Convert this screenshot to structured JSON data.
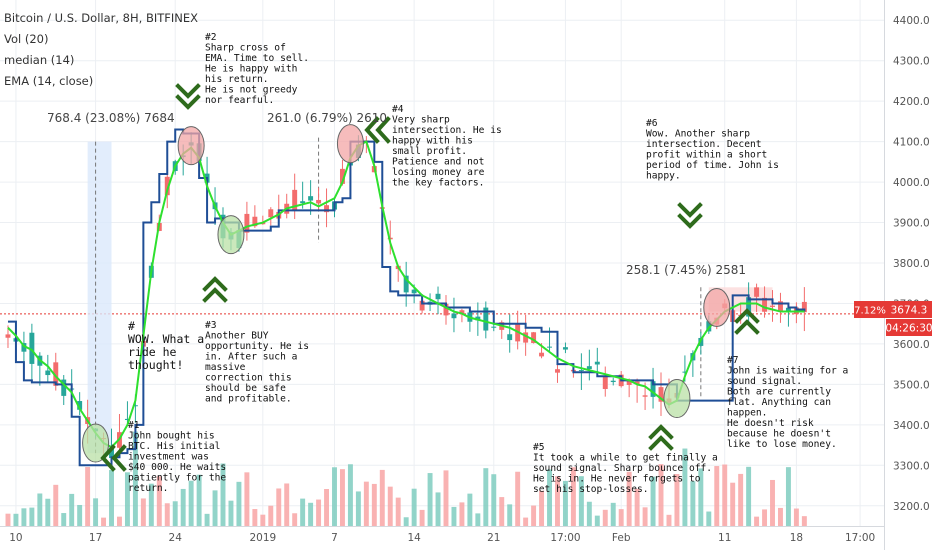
{
  "header": {
    "symbol_line": "Bitcoin / U.S. Dollar, 8H, BITFINEX",
    "indicators": [
      "Vol (20)",
      "median (14)",
      "EMA (14, close)"
    ]
  },
  "colors": {
    "up_candle": "#f36c6c",
    "down_candle": "#26a69a",
    "up_volume": "#f8a5a5",
    "down_volume": "#7fcdbf",
    "median_line": "#1f4e96",
    "ema_line": "#2ee02e",
    "arrow": "#2e6b1c",
    "price_line": "#e53935",
    "grid": "#eceff3",
    "axis_text": "#555555"
  },
  "price_badges": {
    "percent": "7.12%",
    "price": "3674.3",
    "timer": "04:26:30"
  },
  "measurements": [
    {
      "label": "768.4 (23.08%) 7684"
    },
    {
      "label": "261.0 (6.79%) 2610"
    },
    {
      "label": "258.1 (7.45%) 2581"
    }
  ],
  "notes": [
    {
      "id": "n1",
      "lines": [
        "#1",
        "John bought his",
        "BTC. His initial",
        "investment was",
        "$40 000. He waits",
        "patiently for the",
        "return."
      ]
    },
    {
      "id": "n2",
      "lines": [
        "#2",
        "Sharp cross of",
        "EMA. Time to sell.",
        "He is happy with",
        "his return.",
        "He is not greedy",
        "nor fearful."
      ]
    },
    {
      "id": "n3",
      "lines": [
        "#3",
        "Another BUY",
        "opportunity. He is",
        "in. After such a",
        "massive",
        "correction this",
        "should be safe",
        "and profitable."
      ]
    },
    {
      "id": "n4",
      "lines": [
        "#4",
        "Very sharp",
        "intersection. He is",
        "happy with his",
        "small profit.",
        "Patience and not",
        "losing money are",
        "the key factors."
      ]
    },
    {
      "id": "n5",
      "lines": [
        "#5",
        "It took a while to get finally a",
        "sound signal. Sharp bounce off.",
        "He is in. He never forgets to",
        "set his stop-losses."
      ]
    },
    {
      "id": "n6",
      "lines": [
        "#6",
        "Wow. Another sharp",
        "intersection. Decent",
        "profit within a short",
        "period of time. John is",
        "happy."
      ]
    },
    {
      "id": "n7",
      "lines": [
        "#7",
        "John is waiting for a",
        "sound signal.",
        "Both are currently",
        "flat. Anything can",
        "happen.",
        "He doesn't risk",
        "because he doesn't",
        "like to lose money."
      ]
    },
    {
      "id": "wow",
      "lines": [
        "#",
        "WOW. What a",
        "ride he",
        "thought!"
      ]
    }
  ],
  "chart_data": {
    "type": "line",
    "title": "Bitcoin / U.S. Dollar, 8H, BITFINEX",
    "y_axis_side": "right",
    "ylim": [
      3150,
      4450
    ],
    "y_ticks": [
      3200,
      3300,
      3400,
      3500,
      3600,
      3700,
      3800,
      3900,
      4000,
      4100,
      4200,
      4300,
      4400
    ],
    "y_tick_labels": [
      "3200.0",
      "3300.0",
      "3400.0",
      "3500.0",
      "3600.0",
      "3700.0",
      "3800.0",
      "3900.0",
      "4000.0",
      "4100.0",
      "4200.0",
      "4300.0",
      "4400.0"
    ],
    "x_index_range": [
      0,
      106
    ],
    "x_ticks": [
      {
        "i": 1,
        "label": "10"
      },
      {
        "i": 11,
        "label": "17"
      },
      {
        "i": 21,
        "label": "24"
      },
      {
        "i": 32,
        "label": "2019"
      },
      {
        "i": 41,
        "label": "7"
      },
      {
        "i": 51,
        "label": "14"
      },
      {
        "i": 61,
        "label": "21"
      },
      {
        "i": 70,
        "label": "17:00"
      },
      {
        "i": 77,
        "label": "Feb"
      },
      {
        "i": 90,
        "label": "11"
      },
      {
        "i": 99,
        "label": "18"
      },
      {
        "i": 107,
        "label": "17:00"
      }
    ],
    "current_price": 3674.3,
    "series": [
      {
        "name": "median (14)",
        "values": [
          3655,
          3555,
          3510,
          3505,
          3505,
          3505,
          3500,
          3500,
          3420,
          3300,
          3300,
          3300,
          3300,
          3320,
          3330,
          3340,
          3400,
          3900,
          3950,
          4020,
          4100,
          4130,
          4120,
          4120,
          4010,
          3900,
          3910,
          3900,
          3900,
          3880,
          3880,
          3880,
          3880,
          3890,
          3930,
          3930,
          3930,
          3930,
          3930,
          3930,
          3930,
          3950,
          3960,
          4100,
          4100,
          4100,
          4050,
          3790,
          3730,
          3720,
          3720,
          3720,
          3700,
          3700,
          3700,
          3690,
          3690,
          3690,
          3680,
          3680,
          3680,
          3650,
          3650,
          3650,
          3650,
          3640,
          3640,
          3630,
          3630,
          3550,
          3550,
          3530,
          3530,
          3530,
          3520,
          3520,
          3520,
          3510,
          3510,
          3510,
          3510,
          3500,
          3500,
          3500,
          3460,
          3460,
          3460,
          3460,
          3460,
          3460,
          3460,
          3720,
          3720,
          3710,
          3710,
          3710,
          3700,
          3700,
          3690,
          3685,
          3680
        ]
      },
      {
        "name": "EMA (14, close)",
        "values": [
          3640,
          3620,
          3595,
          3585,
          3560,
          3545,
          3520,
          3500,
          3480,
          3440,
          3410,
          3380,
          3355,
          3345,
          3365,
          3400,
          3460,
          3620,
          3780,
          3900,
          3980,
          4040,
          4070,
          4085,
          4060,
          3990,
          3940,
          3900,
          3870,
          3880,
          3890,
          3895,
          3900,
          3910,
          3920,
          3935,
          3940,
          3945,
          3950,
          3940,
          3950,
          3960,
          4000,
          4060,
          4090,
          4100,
          4040,
          3940,
          3850,
          3790,
          3760,
          3740,
          3720,
          3710,
          3700,
          3690,
          3680,
          3675,
          3665,
          3660,
          3655,
          3650,
          3645,
          3640,
          3630,
          3620,
          3610,
          3595,
          3580,
          3565,
          3555,
          3545,
          3540,
          3535,
          3530,
          3525,
          3520,
          3515,
          3510,
          3500,
          3495,
          3480,
          3465,
          3450,
          3460,
          3520,
          3570,
          3610,
          3640,
          3660,
          3680,
          3690,
          3700,
          3700,
          3700,
          3690,
          3685,
          3680,
          3680,
          3680,
          3680
        ]
      }
    ]
  }
}
